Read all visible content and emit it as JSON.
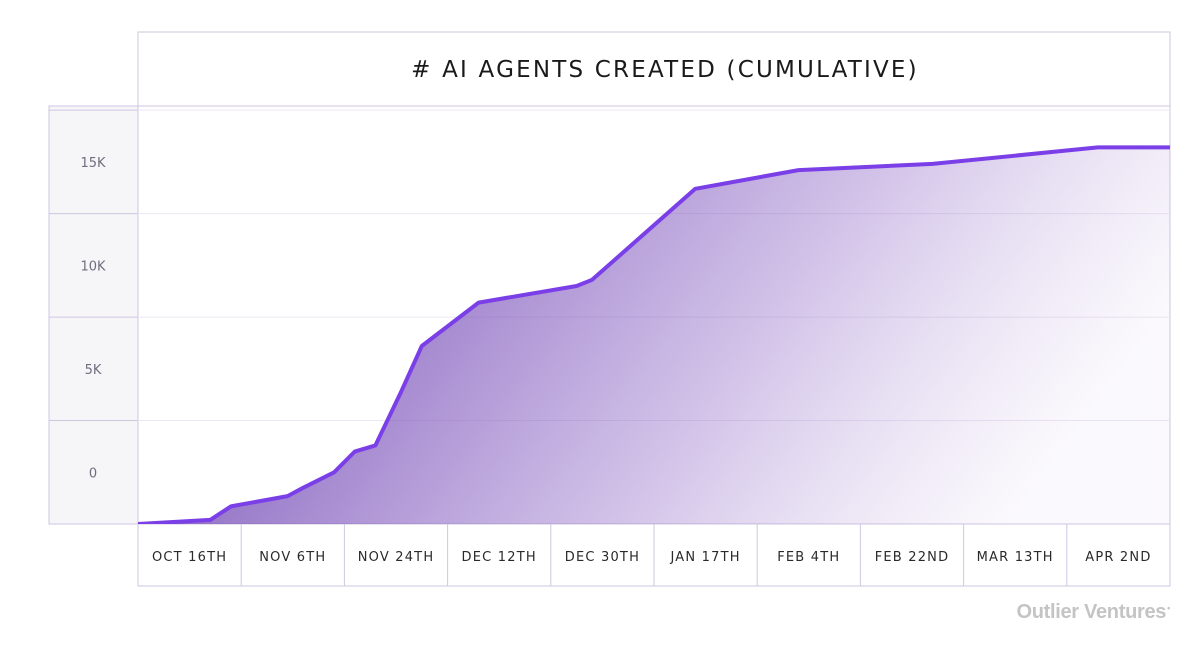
{
  "colors": {
    "line": "#7b3fe8",
    "fill_top": "#6b3fb0",
    "border": "#cfc6e2",
    "panel": "#f6f5f8",
    "grid": "#ece8f3"
  },
  "chart_data": {
    "type": "area",
    "title": "# AI AGENTS CREATED (CUMULATIVE)",
    "xlabel": "",
    "ylabel": "",
    "categories": [
      "OCT 16TH",
      "NOV 6TH",
      "NOV 24TH",
      "DEC 12TH",
      "DEC 30TH",
      "JAN 17TH",
      "FEB 4TH",
      "FEB 22ND",
      "MAR 13TH",
      "APR 2ND"
    ],
    "ytick_labels": [
      "15K",
      "10K",
      "5K",
      "0"
    ],
    "ytick_values": [
      15000,
      10000,
      5000,
      0
    ],
    "ylim": [
      -2500,
      17700
    ],
    "x_range": [
      0,
      10
    ],
    "grid": true,
    "series": [
      {
        "name": "AI agents created (cumulative)",
        "x": [
          0,
          0.7,
          0.9,
          1.45,
          1.6,
          1.9,
          2.1,
          2.3,
          2.55,
          2.75,
          3.3,
          4.25,
          4.4,
          5.4,
          6.4,
          7.7,
          9.3,
          10
        ],
        "values": [
          -2500,
          -2300,
          -1650,
          -1150,
          -750,
          0,
          1000,
          1300,
          3900,
          6100,
          8200,
          9000,
          9300,
          13700,
          14600,
          14900,
          15700,
          15700
        ]
      }
    ]
  },
  "footer": {
    "brand": "Outlier Ventures",
    "brand_mark": "•"
  }
}
